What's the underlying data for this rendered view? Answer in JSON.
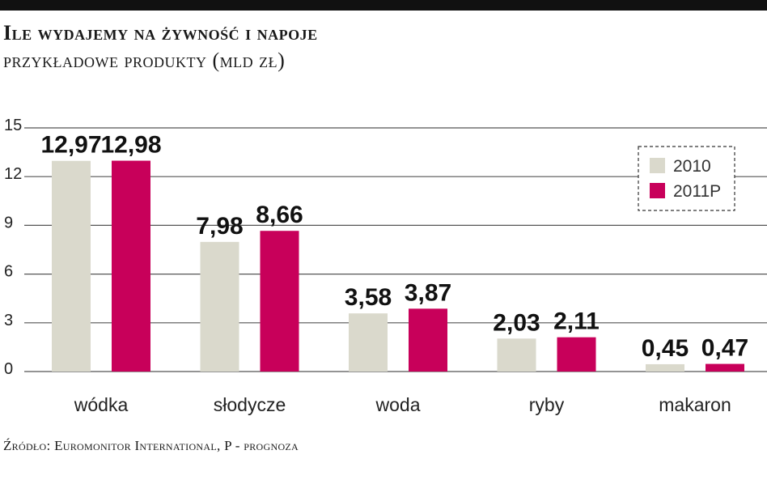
{
  "header": {
    "title": "Ile wydajemy na żywność i napoje",
    "subtitle": "przykładowe produkty (mld zł)"
  },
  "footer": {
    "source": "Źródło: Euromonitor International, P - prognoza"
  },
  "colors": {
    "series_2010": "#dad9cc",
    "series_2011P": "#c8005a",
    "grid": "#555555",
    "topbar": "#111111"
  },
  "chart_data": {
    "type": "bar",
    "title": "Ile wydajemy na żywność i napoje",
    "subtitle": "przykładowe produkty (mld zł)",
    "categories": [
      "wódka",
      "słodycze",
      "woda",
      "ryby",
      "makaron"
    ],
    "series": [
      {
        "name": "2010",
        "values": [
          12.97,
          7.98,
          3.58,
          2.03,
          0.45
        ],
        "labels": [
          "12,97",
          "7,98",
          "3,58",
          "2,03",
          "0,45"
        ]
      },
      {
        "name": "2011P",
        "values": [
          12.98,
          8.66,
          3.87,
          2.11,
          0.47
        ],
        "labels": [
          "12,98",
          "8,66",
          "3,87",
          "2,11",
          "0,47"
        ]
      }
    ],
    "yticks": [
      "0",
      "3",
      "6",
      "9",
      "12",
      "15"
    ],
    "ylim": [
      0,
      15
    ],
    "grid": true,
    "legend_position": "top-right",
    "xlabel": "",
    "ylabel": ""
  }
}
